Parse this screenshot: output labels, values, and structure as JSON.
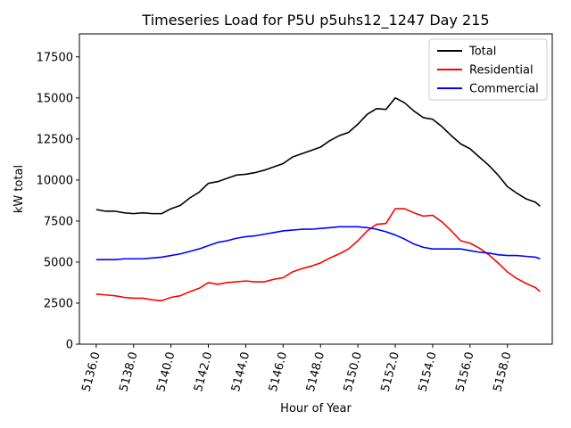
{
  "chart_data": {
    "type": "line",
    "title": "Timeseries Load for P5U p5uhs12_1247  Day 215",
    "xlabel": "Hour of Year",
    "ylabel": "kW total",
    "xlim": [
      5135.1,
      5160.4
    ],
    "ylim": [
      0,
      18900
    ],
    "xticks": [
      5136,
      5138,
      5140,
      5142,
      5144,
      5146,
      5148,
      5150,
      5152,
      5154,
      5156,
      5158
    ],
    "xtick_labels": [
      "5136.0",
      "5138.0",
      "5140.0",
      "5142.0",
      "5144.0",
      "5146.0",
      "5148.0",
      "5150.0",
      "5152.0",
      "5154.0",
      "5156.0",
      "5158.0"
    ],
    "yticks": [
      0,
      2500,
      5000,
      7500,
      10000,
      12500,
      15000,
      17500
    ],
    "ytick_labels": [
      "0",
      "2500",
      "5000",
      "7500",
      "10000",
      "12500",
      "15000",
      "17500"
    ],
    "legend_position": "top-right",
    "x": [
      5136.0,
      5136.5,
      5137.0,
      5137.5,
      5138.0,
      5138.5,
      5139.0,
      5139.5,
      5140.0,
      5140.5,
      5141.0,
      5141.5,
      5142.0,
      5142.5,
      5143.0,
      5143.5,
      5144.0,
      5144.5,
      5145.0,
      5145.5,
      5146.0,
      5146.5,
      5147.0,
      5147.5,
      5148.0,
      5148.5,
      5149.0,
      5149.5,
      5150.0,
      5150.5,
      5151.0,
      5151.5,
      5152.0,
      5152.5,
      5153.0,
      5153.5,
      5154.0,
      5154.5,
      5155.0,
      5155.5,
      5156.0,
      5156.5,
      5157.0,
      5157.5,
      5158.0,
      5158.5,
      5159.0,
      5159.5,
      5159.75
    ],
    "series": [
      {
        "name": "Total",
        "color": "#000000",
        "values": [
          8200,
          8100,
          8100,
          8000,
          7950,
          8000,
          7950,
          7950,
          8250,
          8450,
          8900,
          9250,
          9800,
          9900,
          10100,
          10300,
          10350,
          10450,
          10600,
          10800,
          11000,
          11400,
          11600,
          11800,
          12000,
          12400,
          12700,
          12900,
          13400,
          14000,
          14350,
          14300,
          15000,
          14700,
          14200,
          13800,
          13700,
          13250,
          12700,
          12200,
          11900,
          11400,
          10900,
          10300,
          9600,
          9200,
          8850,
          8650,
          8400
        ]
      },
      {
        "name": "Residential",
        "color": "#ff0000",
        "values": [
          3050,
          3000,
          2950,
          2850,
          2800,
          2800,
          2700,
          2650,
          2850,
          2950,
          3200,
          3400,
          3750,
          3650,
          3750,
          3800,
          3850,
          3800,
          3800,
          3950,
          4050,
          4400,
          4600,
          4750,
          4950,
          5250,
          5500,
          5800,
          6300,
          6900,
          7300,
          7350,
          8250,
          8250,
          8000,
          7800,
          7850,
          7450,
          6900,
          6300,
          6150,
          5850,
          5450,
          4950,
          4400,
          4000,
          3700,
          3450,
          3200
        ]
      },
      {
        "name": "Commercial",
        "color": "#0000ff",
        "values": [
          5150,
          5150,
          5150,
          5200,
          5200,
          5200,
          5250,
          5300,
          5400,
          5500,
          5650,
          5800,
          6000,
          6200,
          6300,
          6450,
          6550,
          6600,
          6700,
          6800,
          6900,
          6950,
          7000,
          7000,
          7050,
          7100,
          7150,
          7150,
          7150,
          7100,
          7000,
          6850,
          6650,
          6400,
          6100,
          5900,
          5800,
          5800,
          5800,
          5800,
          5700,
          5600,
          5550,
          5450,
          5400,
          5400,
          5350,
          5300,
          5200
        ]
      }
    ]
  }
}
